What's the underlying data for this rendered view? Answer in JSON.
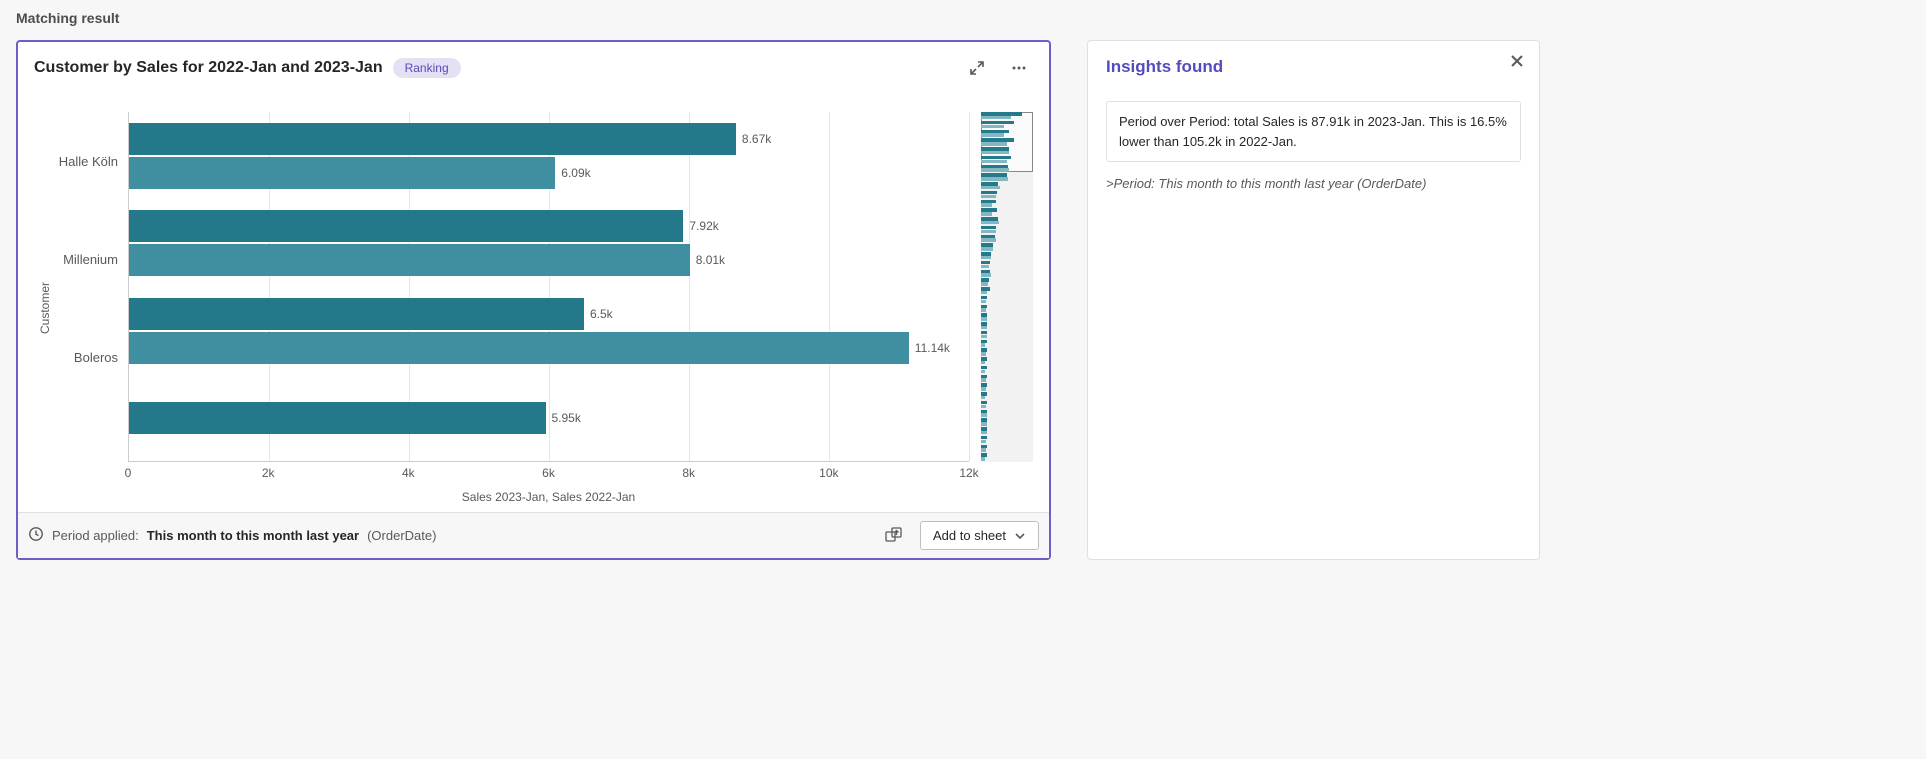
{
  "section_title": "Matching result",
  "chart_card": {
    "title": "Customer by Sales for 2022-Jan and 2023-Jan",
    "badge": "Ranking",
    "chart": {
      "type": "bar",
      "orientation": "horizontal",
      "y_axis_title": "Customer",
      "x_axis_title": "Sales 2023-Jan, Sales 2022-Jan",
      "x_ticks": [
        "0",
        "2k",
        "4k",
        "6k",
        "8k",
        "10k",
        "12k"
      ],
      "x_max": 12000,
      "grid_color": "#e6e6e6",
      "axis_color": "#cccccc",
      "background_color": "#ffffff",
      "label_fontsize": 12,
      "series_colors": {
        "s1": "#23798a",
        "s2": "#3f8fa0"
      },
      "groups": [
        {
          "label": "Halle Köln",
          "bars": [
            {
              "series": "s1",
              "value": 8670,
              "text": "8.67k"
            },
            {
              "series": "s2",
              "value": 6090,
              "text": "6.09k"
            }
          ]
        },
        {
          "label": "Millenium",
          "bars": [
            {
              "series": "s1",
              "value": 7920,
              "text": "7.92k"
            },
            {
              "series": "s2",
              "value": 8010,
              "text": "8.01k"
            }
          ]
        },
        {
          "label": "Boleros",
          "bars": [
            {
              "series": "s1",
              "value": 6500,
              "text": "6.5k"
            },
            {
              "series": "s2",
              "value": 11140,
              "text": "11.14k"
            }
          ]
        },
        {
          "label": "",
          "bars": [
            {
              "series": "s1",
              "value": 5950,
              "text": "5.95k"
            }
          ]
        }
      ],
      "minimap": {
        "viewport_top_pct": 0,
        "viewport_height_pct": 17,
        "bars_color_major": "#247a8b",
        "bars_color_minor": "#83b8c2",
        "row_count": 40
      }
    },
    "footer": {
      "period_label": "Period applied:",
      "period_value_bold": "This month to this month last year",
      "period_field": "(OrderDate)",
      "add_button": "Add to sheet"
    }
  },
  "insights": {
    "title": "Insights found",
    "items": [
      "Period over Period: total Sales is 87.91k in 2023-Jan. This is 16.5% lower than 105.2k in 2022-Jan."
    ],
    "period_note": ">Period: This month to this month last year (OrderDate)"
  }
}
